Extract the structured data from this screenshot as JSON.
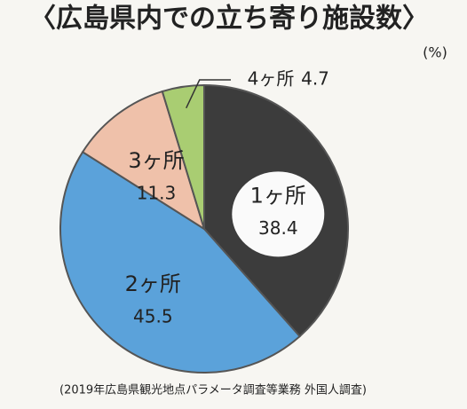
{
  "chart_data": {
    "type": "pie",
    "title": "〈広島県内での立ち寄り施設数〉",
    "unit": "(%)",
    "categories": [
      "1ヶ所",
      "2ヶ所",
      "3ヶ所",
      "4ヶ所"
    ],
    "values": [
      38.4,
      45.5,
      11.3,
      4.7
    ],
    "colors": [
      "#3c3c3c",
      "#5ba2da",
      "#efc1aa",
      "#a9cd72"
    ],
    "source": "(2019年広島県観光地点パラメータ調査等業務 外国人調査)"
  }
}
